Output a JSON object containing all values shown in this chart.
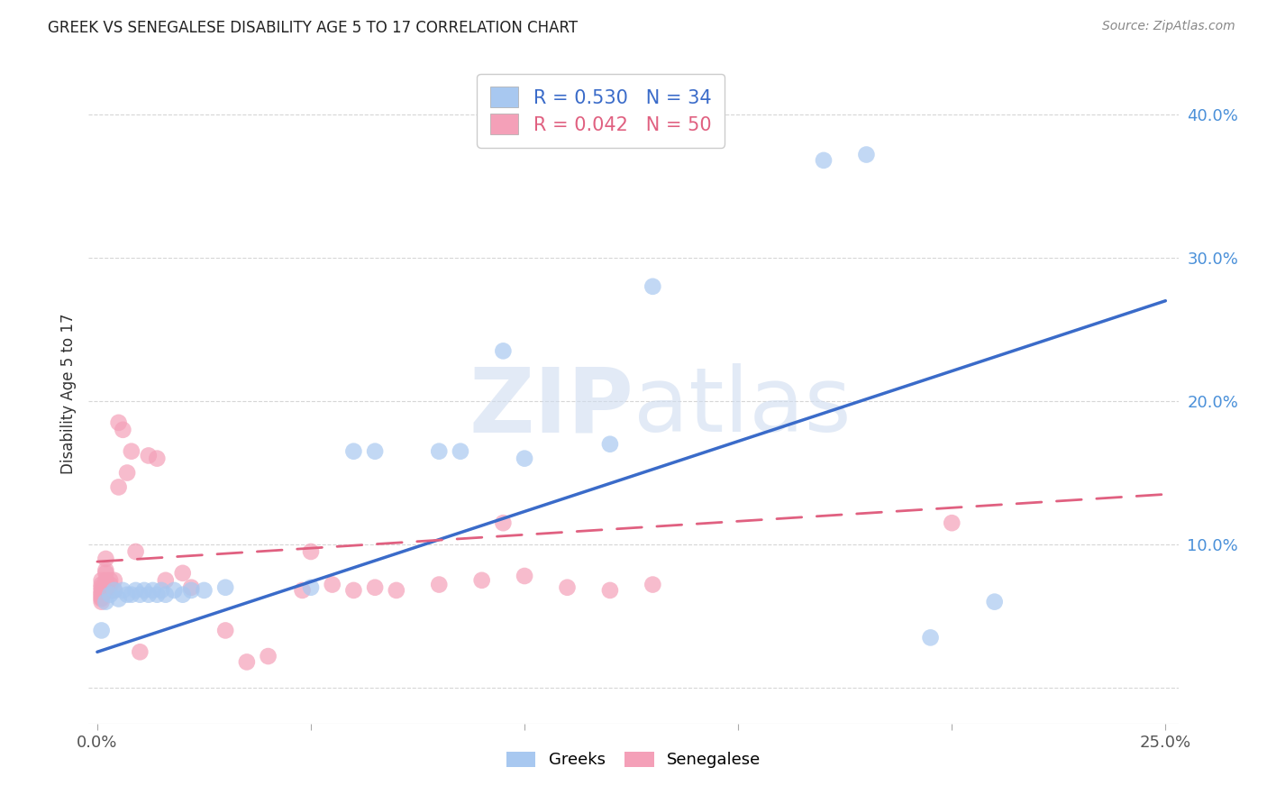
{
  "title": "GREEK VS SENEGALESE DISABILITY AGE 5 TO 17 CORRELATION CHART",
  "source": "Source: ZipAtlas.com",
  "ylabel": "Disability Age 5 to 17",
  "xlim": [
    0.0,
    0.25
  ],
  "ylim": [
    0.0,
    0.42
  ],
  "greek_R": 0.53,
  "greek_N": 34,
  "senegalese_R": 0.042,
  "senegalese_N": 50,
  "greek_color": "#A8C8F0",
  "senegalese_color": "#F4A0B8",
  "greek_line_color": "#3A6BC9",
  "senegalese_line_color": "#E06080",
  "watermark_zip": "ZIP",
  "watermark_atlas": "atlas",
  "greek_x": [
    0.001,
    0.002,
    0.003,
    0.004,
    0.005,
    0.006,
    0.007,
    0.008,
    0.009,
    0.01,
    0.011,
    0.012,
    0.013,
    0.014,
    0.015,
    0.016,
    0.018,
    0.02,
    0.022,
    0.025,
    0.03,
    0.05,
    0.06,
    0.065,
    0.08,
    0.085,
    0.095,
    0.1,
    0.12,
    0.13,
    0.17,
    0.18,
    0.195,
    0.21
  ],
  "greek_y": [
    0.04,
    0.06,
    0.065,
    0.068,
    0.062,
    0.068,
    0.065,
    0.065,
    0.068,
    0.065,
    0.068,
    0.065,
    0.068,
    0.065,
    0.068,
    0.065,
    0.068,
    0.065,
    0.068,
    0.068,
    0.07,
    0.07,
    0.165,
    0.165,
    0.165,
    0.165,
    0.235,
    0.16,
    0.17,
    0.28,
    0.368,
    0.372,
    0.035,
    0.06
  ],
  "senegalese_x": [
    0.001,
    0.001,
    0.001,
    0.001,
    0.001,
    0.001,
    0.001,
    0.001,
    0.001,
    0.002,
    0.002,
    0.002,
    0.002,
    0.002,
    0.002,
    0.002,
    0.003,
    0.003,
    0.003,
    0.004,
    0.004,
    0.005,
    0.005,
    0.006,
    0.007,
    0.008,
    0.009,
    0.01,
    0.012,
    0.014,
    0.016,
    0.02,
    0.022,
    0.03,
    0.035,
    0.04,
    0.048,
    0.05,
    0.055,
    0.06,
    0.065,
    0.07,
    0.08,
    0.09,
    0.095,
    0.1,
    0.11,
    0.12,
    0.13,
    0.2
  ],
  "senegalese_y": [
    0.06,
    0.062,
    0.063,
    0.065,
    0.066,
    0.068,
    0.07,
    0.072,
    0.075,
    0.068,
    0.07,
    0.072,
    0.075,
    0.08,
    0.082,
    0.09,
    0.068,
    0.072,
    0.075,
    0.068,
    0.075,
    0.14,
    0.185,
    0.18,
    0.15,
    0.165,
    0.095,
    0.025,
    0.162,
    0.16,
    0.075,
    0.08,
    0.07,
    0.04,
    0.018,
    0.022,
    0.068,
    0.095,
    0.072,
    0.068,
    0.07,
    0.068,
    0.072,
    0.075,
    0.115,
    0.078,
    0.07,
    0.068,
    0.072,
    0.115
  ],
  "greek_line_x0": 0.0,
  "greek_line_y0": 0.025,
  "greek_line_x1": 0.25,
  "greek_line_y1": 0.27,
  "senegalese_line_x0": 0.0,
  "senegalese_line_y0": 0.088,
  "senegalese_line_x1": 0.25,
  "senegalese_line_y1": 0.135
}
